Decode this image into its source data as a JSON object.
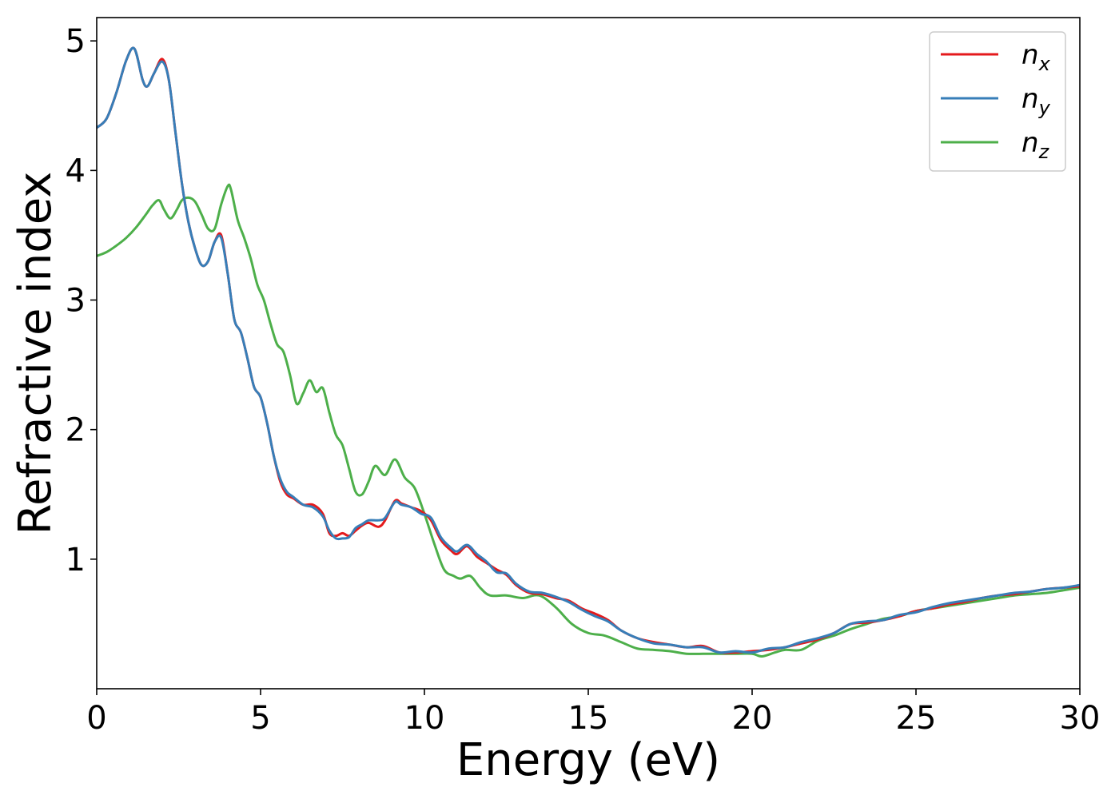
{
  "chart_data": {
    "type": "line",
    "title": "",
    "xlabel": "Energy (eV)",
    "ylabel": "Refractive index",
    "xlim": [
      0,
      30
    ],
    "ylim": [
      0,
      5.18
    ],
    "xticks": [
      0,
      5,
      10,
      15,
      20,
      25,
      30
    ],
    "yticks": [
      1,
      2,
      3,
      4,
      5
    ],
    "grid": false,
    "legend_position": "top-right",
    "series": [
      {
        "name": "n",
        "subscript": "x",
        "color": "#e41a1c",
        "x": [
          0,
          0.3,
          0.6,
          0.9,
          1.15,
          1.4,
          1.55,
          1.75,
          2.0,
          2.2,
          2.4,
          2.6,
          2.8,
          3.0,
          3.2,
          3.4,
          3.6,
          3.8,
          4.0,
          4.2,
          4.4,
          4.6,
          4.8,
          5.0,
          5.2,
          5.4,
          5.6,
          5.8,
          6.0,
          6.3,
          6.6,
          6.9,
          7.1,
          7.3,
          7.5,
          7.7,
          7.9,
          8.1,
          8.3,
          8.6,
          8.8,
          9.1,
          9.3,
          9.6,
          9.9,
          10.2,
          10.5,
          10.8,
          11.0,
          11.3,
          11.6,
          11.9,
          12.2,
          12.5,
          12.8,
          13.2,
          13.6,
          14.0,
          14.4,
          14.8,
          15.2,
          15.6,
          16.0,
          16.5,
          17.0,
          17.5,
          18.0,
          18.5,
          19.0,
          19.5,
          20.0,
          20.5,
          21.0,
          21.5,
          22.0,
          22.5,
          23.0,
          23.5,
          24.0,
          24.5,
          25.0,
          25.5,
          26.0,
          26.5,
          27.0,
          27.5,
          28.0,
          28.5,
          29.0,
          29.5,
          30.0
        ],
        "y": [
          4.33,
          4.4,
          4.6,
          4.85,
          4.94,
          4.7,
          4.65,
          4.75,
          4.86,
          4.7,
          4.3,
          3.9,
          3.6,
          3.4,
          3.27,
          3.3,
          3.45,
          3.5,
          3.2,
          2.85,
          2.75,
          2.55,
          2.33,
          2.25,
          2.05,
          1.8,
          1.6,
          1.5,
          1.47,
          1.42,
          1.42,
          1.35,
          1.2,
          1.18,
          1.2,
          1.18,
          1.22,
          1.26,
          1.28,
          1.25,
          1.3,
          1.45,
          1.43,
          1.4,
          1.37,
          1.3,
          1.15,
          1.07,
          1.04,
          1.1,
          1.02,
          0.97,
          0.92,
          0.88,
          0.8,
          0.74,
          0.73,
          0.7,
          0.68,
          0.62,
          0.58,
          0.53,
          0.45,
          0.39,
          0.36,
          0.34,
          0.32,
          0.33,
          0.28,
          0.28,
          0.29,
          0.3,
          0.32,
          0.35,
          0.38,
          0.43,
          0.5,
          0.51,
          0.53,
          0.56,
          0.6,
          0.62,
          0.65,
          0.67,
          0.7,
          0.72,
          0.73,
          0.75,
          0.77,
          0.78,
          0.79
        ]
      },
      {
        "name": "n",
        "subscript": "y",
        "color": "#377eb8",
        "x": [
          0,
          0.3,
          0.6,
          0.9,
          1.15,
          1.4,
          1.55,
          1.75,
          2.0,
          2.2,
          2.4,
          2.6,
          2.8,
          3.0,
          3.2,
          3.4,
          3.6,
          3.8,
          4.0,
          4.2,
          4.4,
          4.6,
          4.8,
          5.0,
          5.2,
          5.4,
          5.6,
          5.8,
          6.0,
          6.3,
          6.6,
          6.9,
          7.1,
          7.3,
          7.5,
          7.7,
          7.9,
          8.1,
          8.3,
          8.6,
          8.8,
          9.1,
          9.3,
          9.6,
          9.9,
          10.2,
          10.5,
          10.8,
          11.0,
          11.3,
          11.6,
          11.9,
          12.2,
          12.5,
          12.8,
          13.2,
          13.6,
          14.0,
          14.4,
          14.8,
          15.2,
          15.6,
          16.0,
          16.5,
          17.0,
          17.5,
          18.0,
          18.5,
          19.0,
          19.5,
          20.0,
          20.5,
          21.0,
          21.5,
          22.0,
          22.5,
          23.0,
          23.5,
          24.0,
          24.5,
          25.0,
          25.5,
          26.0,
          26.5,
          27.0,
          27.5,
          28.0,
          28.5,
          29.0,
          29.5,
          30.0
        ],
        "y": [
          4.33,
          4.4,
          4.6,
          4.85,
          4.94,
          4.7,
          4.65,
          4.75,
          4.84,
          4.7,
          4.3,
          3.9,
          3.6,
          3.4,
          3.27,
          3.3,
          3.45,
          3.48,
          3.2,
          2.85,
          2.75,
          2.55,
          2.33,
          2.25,
          2.05,
          1.8,
          1.62,
          1.52,
          1.48,
          1.42,
          1.4,
          1.33,
          1.22,
          1.16,
          1.16,
          1.17,
          1.24,
          1.27,
          1.3,
          1.3,
          1.32,
          1.44,
          1.42,
          1.4,
          1.35,
          1.32,
          1.17,
          1.09,
          1.06,
          1.11,
          1.04,
          0.98,
          0.9,
          0.89,
          0.81,
          0.75,
          0.74,
          0.71,
          0.67,
          0.61,
          0.56,
          0.52,
          0.45,
          0.39,
          0.35,
          0.34,
          0.32,
          0.32,
          0.28,
          0.29,
          0.28,
          0.31,
          0.32,
          0.36,
          0.39,
          0.43,
          0.5,
          0.52,
          0.53,
          0.57,
          0.59,
          0.63,
          0.66,
          0.68,
          0.7,
          0.72,
          0.74,
          0.75,
          0.77,
          0.78,
          0.8
        ]
      },
      {
        "name": "n",
        "subscript": "z",
        "color": "#4daf4a",
        "x": [
          0,
          0.3,
          0.6,
          0.9,
          1.2,
          1.5,
          1.7,
          1.9,
          2.05,
          2.25,
          2.45,
          2.6,
          2.8,
          3.0,
          3.2,
          3.4,
          3.6,
          3.8,
          4.0,
          4.1,
          4.3,
          4.5,
          4.7,
          4.9,
          5.1,
          5.3,
          5.5,
          5.7,
          5.9,
          6.1,
          6.3,
          6.5,
          6.7,
          6.9,
          7.1,
          7.3,
          7.5,
          7.7,
          7.9,
          8.1,
          8.3,
          8.5,
          8.8,
          9.1,
          9.4,
          9.7,
          10.0,
          10.3,
          10.6,
          10.9,
          11.1,
          11.4,
          11.7,
          12.0,
          12.5,
          13.0,
          13.5,
          14.0,
          14.5,
          15.0,
          15.5,
          16.0,
          16.5,
          17.0,
          17.5,
          18.0,
          18.5,
          19.0,
          19.5,
          20.0,
          20.3,
          20.7,
          21.0,
          21.5,
          22.0,
          22.5,
          23.0,
          23.5,
          24.0,
          24.5,
          25.0,
          25.5,
          26.0,
          26.5,
          27.0,
          27.5,
          28.0,
          28.5,
          29.0,
          29.5,
          30.0
        ],
        "y": [
          3.34,
          3.37,
          3.42,
          3.48,
          3.56,
          3.66,
          3.73,
          3.77,
          3.7,
          3.63,
          3.7,
          3.77,
          3.79,
          3.76,
          3.66,
          3.55,
          3.55,
          3.74,
          3.88,
          3.85,
          3.62,
          3.48,
          3.32,
          3.12,
          3.0,
          2.82,
          2.66,
          2.6,
          2.42,
          2.2,
          2.28,
          2.38,
          2.29,
          2.32,
          2.13,
          1.96,
          1.88,
          1.7,
          1.52,
          1.5,
          1.6,
          1.72,
          1.65,
          1.77,
          1.63,
          1.55,
          1.35,
          1.12,
          0.92,
          0.87,
          0.85,
          0.87,
          0.78,
          0.72,
          0.72,
          0.7,
          0.72,
          0.63,
          0.5,
          0.43,
          0.41,
          0.36,
          0.31,
          0.3,
          0.29,
          0.27,
          0.27,
          0.27,
          0.27,
          0.27,
          0.25,
          0.28,
          0.3,
          0.3,
          0.37,
          0.41,
          0.46,
          0.5,
          0.54,
          0.56,
          0.6,
          0.62,
          0.64,
          0.66,
          0.68,
          0.7,
          0.72,
          0.73,
          0.74,
          0.76,
          0.78
        ]
      }
    ]
  }
}
